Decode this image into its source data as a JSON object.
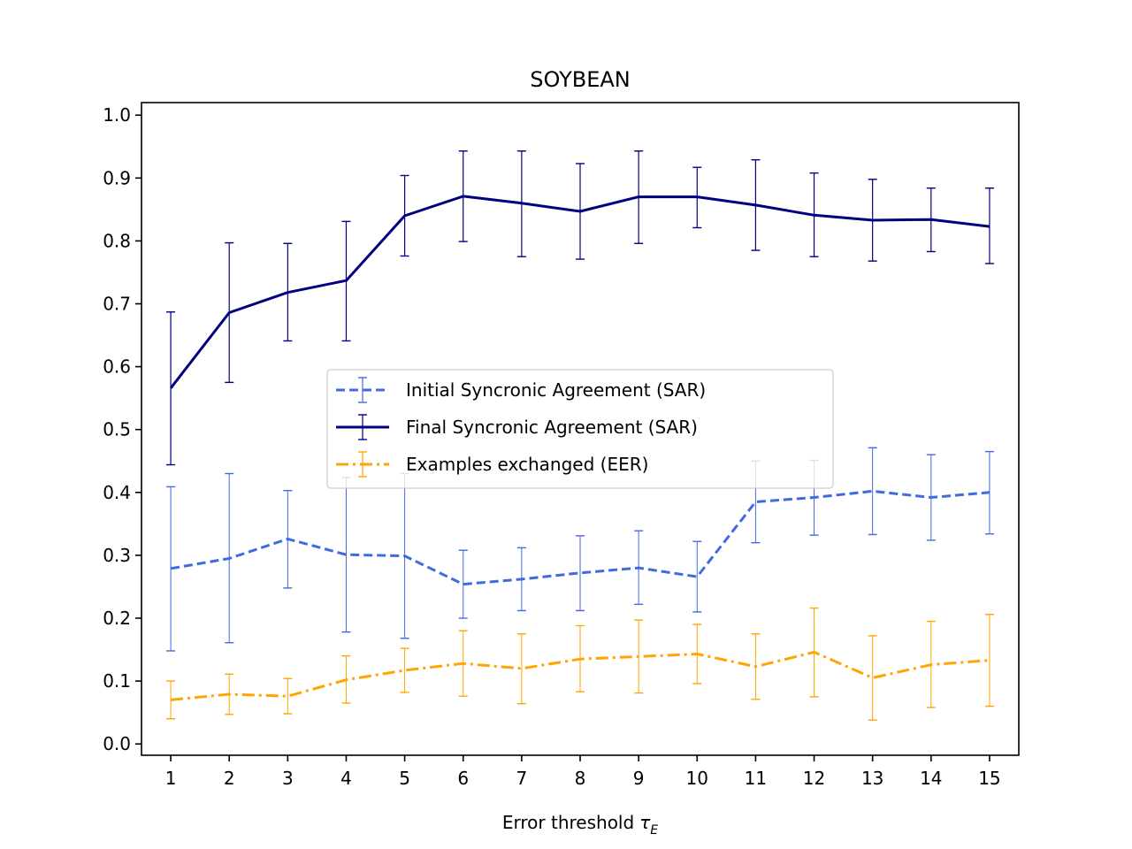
{
  "chart_data": {
    "type": "line",
    "title": "SOYBEAN",
    "xlabel": "Error threshold",
    "xlabel_symbol": "τ",
    "xlabel_subscript": "E",
    "ylabel": "",
    "x": [
      1,
      2,
      3,
      4,
      5,
      6,
      7,
      8,
      9,
      10,
      11,
      12,
      13,
      14,
      15
    ],
    "xlim": [
      0.5,
      15.5
    ],
    "ylim": [
      -0.018,
      1.02
    ],
    "yticks": [
      0.0,
      0.1,
      0.2,
      0.3,
      0.4,
      0.5,
      0.6,
      0.7,
      0.8,
      0.9,
      1.0
    ],
    "grid": false,
    "legend_position": "center",
    "series": [
      {
        "name": "Initial Syncronic Agreement (SAR)",
        "color": "#4169e1",
        "line_style": "dashed",
        "values": [
          0.279,
          0.295,
          0.326,
          0.301,
          0.299,
          0.254,
          0.262,
          0.272,
          0.28,
          0.266,
          0.385,
          0.392,
          0.402,
          0.392,
          0.4
        ],
        "err_low": [
          0.148,
          0.161,
          0.248,
          0.178,
          0.168,
          0.2,
          0.212,
          0.212,
          0.222,
          0.21,
          0.32,
          0.332,
          0.333,
          0.324,
          0.334
        ],
        "err_high": [
          0.409,
          0.43,
          0.403,
          0.424,
          0.43,
          0.308,
          0.312,
          0.331,
          0.339,
          0.322,
          0.45,
          0.451,
          0.471,
          0.46,
          0.465
        ]
      },
      {
        "name": "Final Syncronic Agreement (SAR)",
        "color": "#000080",
        "line_style": "solid",
        "values": [
          0.566,
          0.686,
          0.718,
          0.737,
          0.84,
          0.871,
          0.86,
          0.847,
          0.87,
          0.87,
          0.857,
          0.841,
          0.833,
          0.834,
          0.823
        ],
        "err_low": [
          0.444,
          0.575,
          0.641,
          0.641,
          0.776,
          0.799,
          0.775,
          0.771,
          0.796,
          0.821,
          0.785,
          0.775,
          0.768,
          0.783,
          0.764
        ],
        "err_high": [
          0.687,
          0.797,
          0.796,
          0.831,
          0.904,
          0.943,
          0.943,
          0.923,
          0.943,
          0.917,
          0.929,
          0.908,
          0.898,
          0.884,
          0.884
        ]
      },
      {
        "name": "Examples exchanged (EER)",
        "color": "#ffa500",
        "line_style": "dashdot",
        "values": [
          0.07,
          0.079,
          0.076,
          0.102,
          0.117,
          0.128,
          0.12,
          0.135,
          0.139,
          0.143,
          0.123,
          0.146,
          0.105,
          0.126,
          0.133
        ],
        "err_low": [
          0.04,
          0.047,
          0.048,
          0.065,
          0.082,
          0.076,
          0.064,
          0.083,
          0.081,
          0.096,
          0.071,
          0.075,
          0.038,
          0.058,
          0.06
        ],
        "err_high": [
          0.1,
          0.111,
          0.104,
          0.14,
          0.152,
          0.18,
          0.175,
          0.188,
          0.197,
          0.19,
          0.175,
          0.216,
          0.172,
          0.195,
          0.206
        ]
      }
    ]
  }
}
